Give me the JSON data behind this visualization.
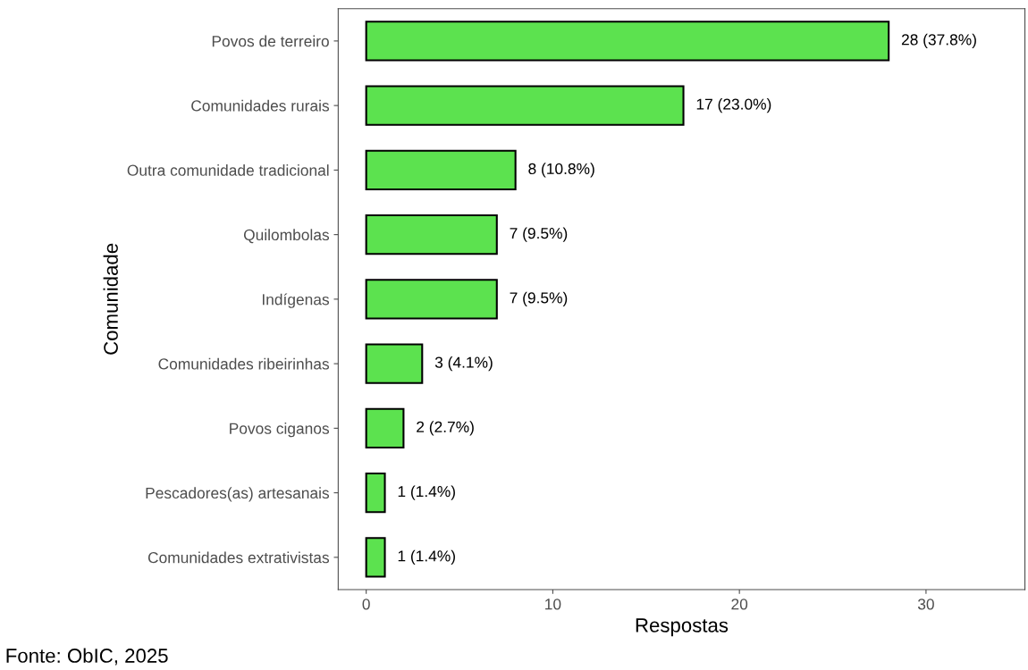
{
  "chart_data": {
    "type": "bar",
    "orientation": "horizontal",
    "xlabel": "Respostas",
    "ylabel": "Comunidade",
    "categories": [
      "Povos de terreiro",
      "Comunidades rurais",
      "Outra comunidade tradicional",
      "Quilombolas",
      "Indígenas",
      "Comunidades ribeirinhas",
      "Povos ciganos",
      "Pescadores(as) artesanais",
      "Comunidades extrativistas"
    ],
    "values": [
      28,
      17,
      8,
      7,
      7,
      3,
      2,
      1,
      1
    ],
    "value_labels": [
      "28 (37.8%)",
      "17 (23.0%)",
      "8 (10.8%)",
      "7 (9.5%)",
      "7 (9.5%)",
      "3 (4.1%)",
      "2 (2.7%)",
      "1 (1.4%)",
      "1 (1.4%)"
    ],
    "color": "#5ce24f",
    "xlim": [
      -1.5,
      35.3
    ],
    "xticks": [
      0,
      10,
      20,
      30
    ],
    "grid": false,
    "annotations": [
      "Fonte: ObIC, 2025"
    ]
  }
}
